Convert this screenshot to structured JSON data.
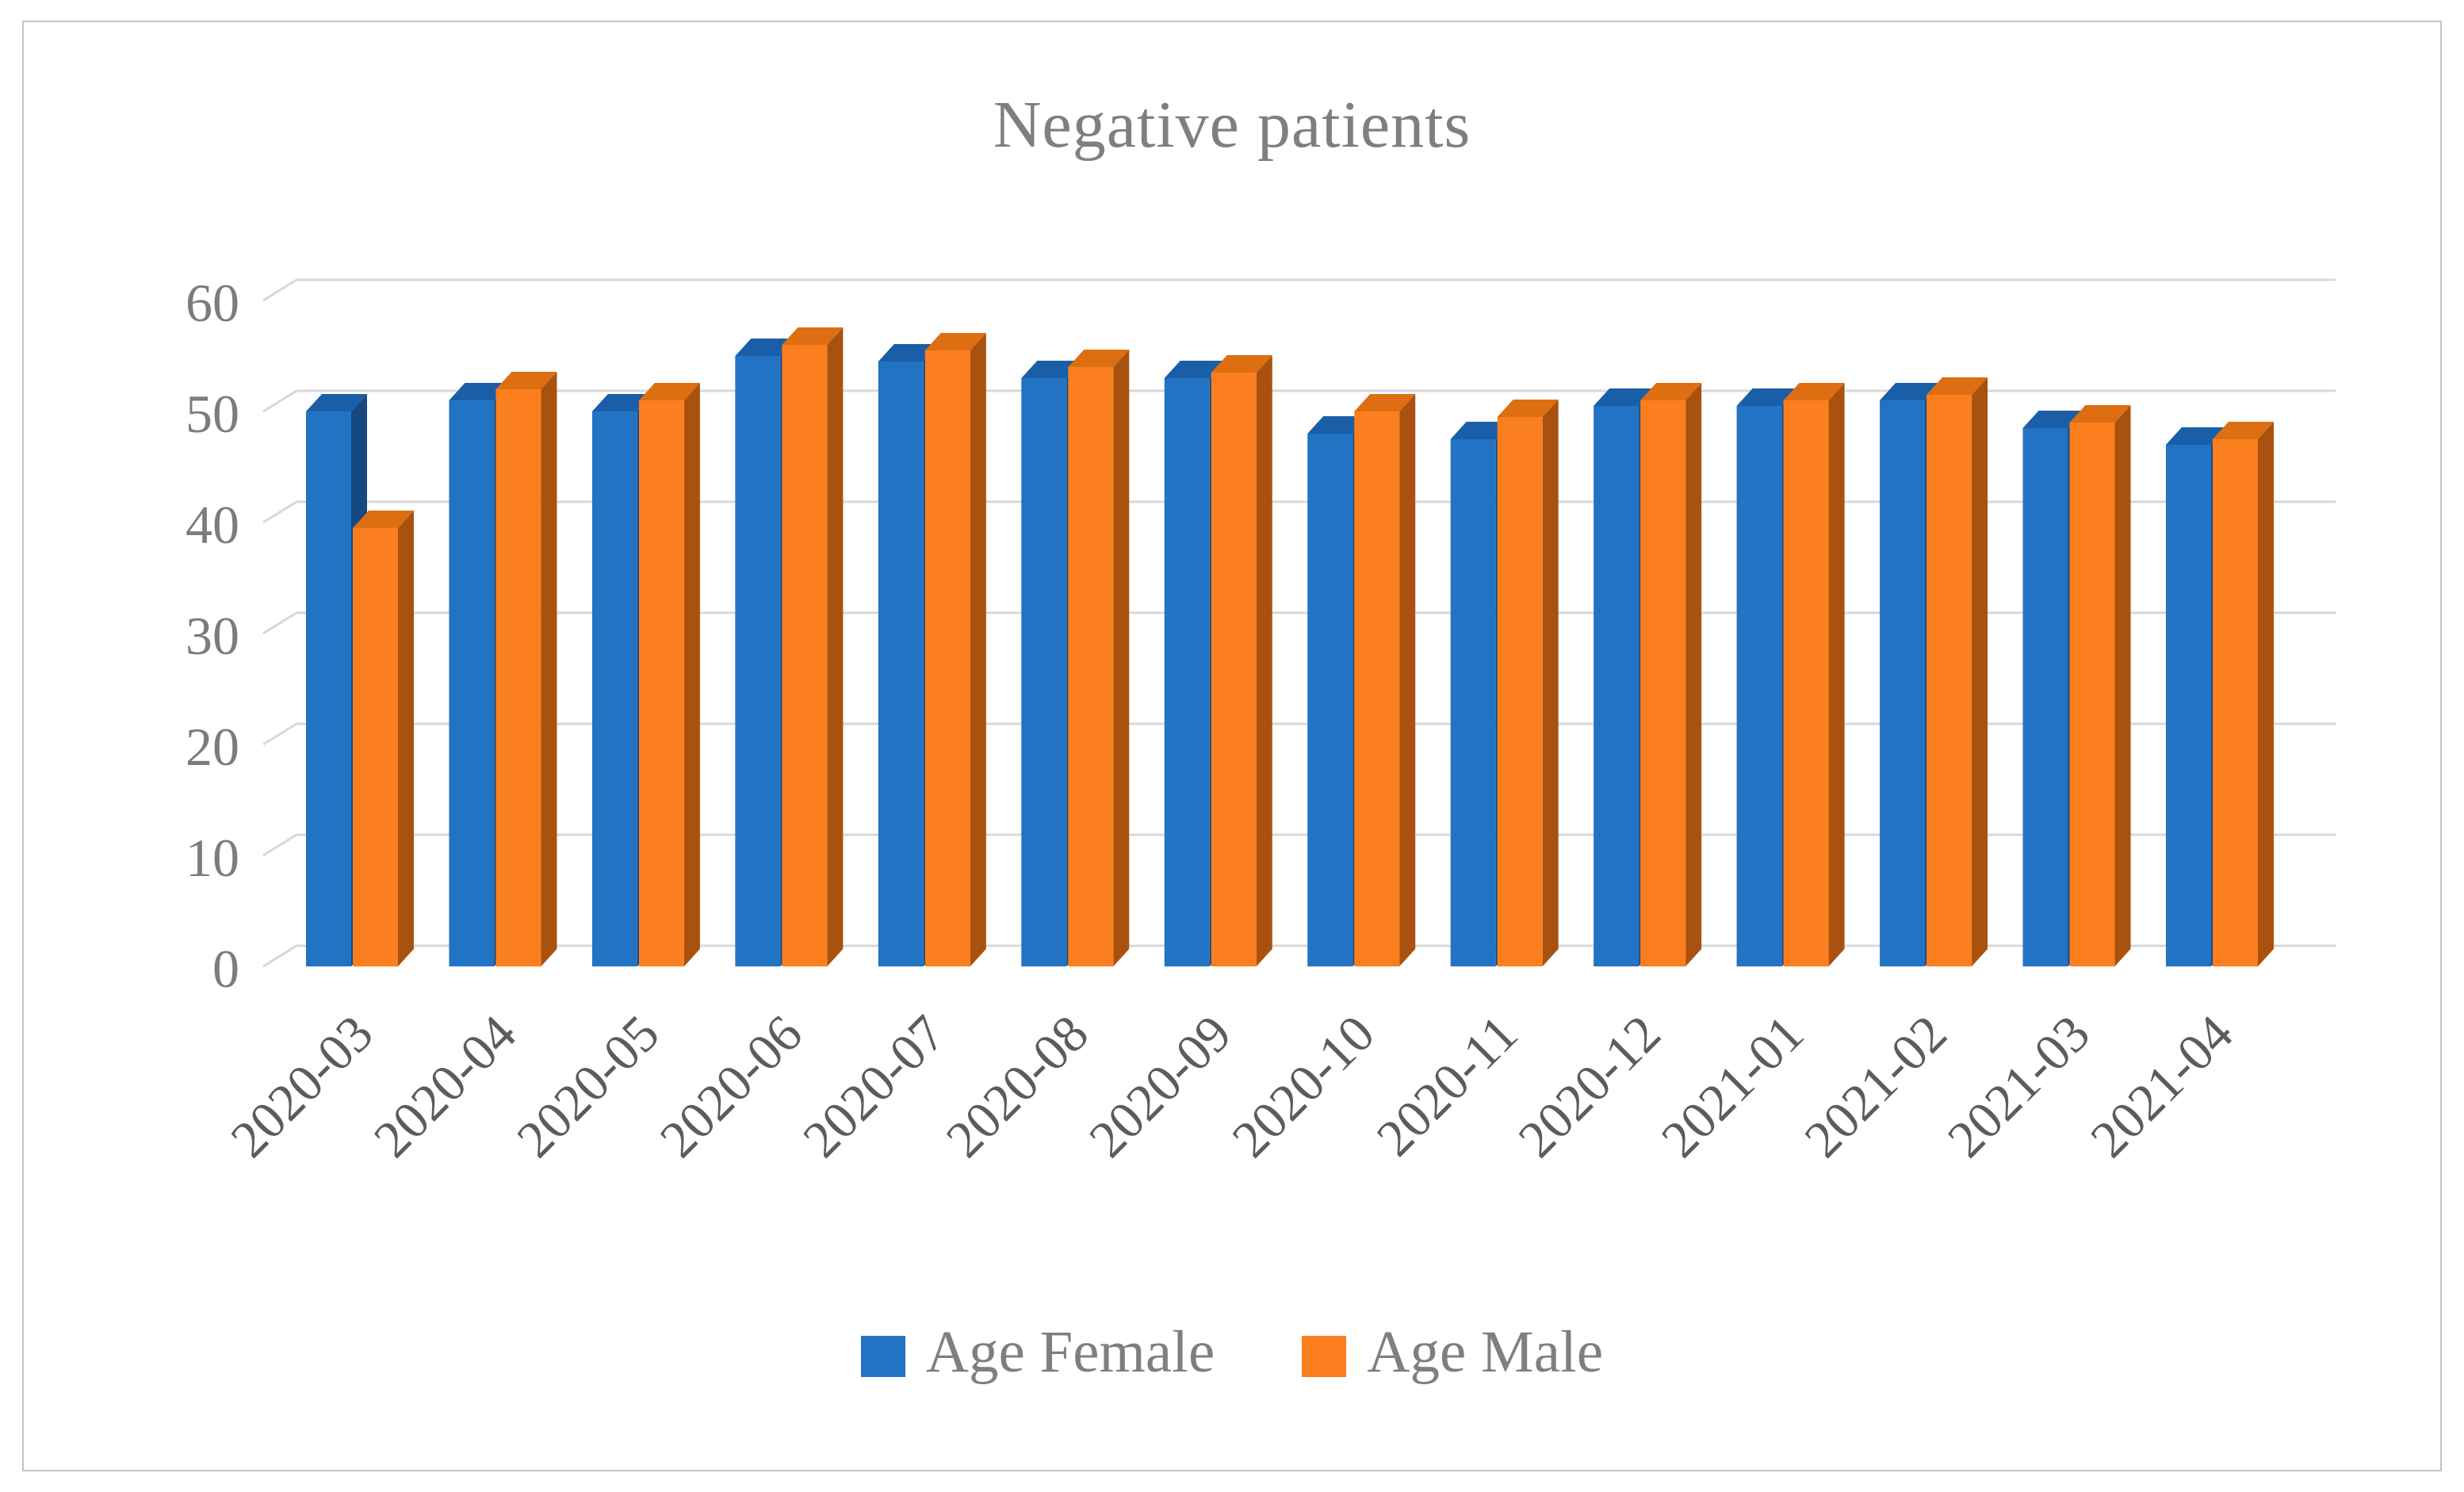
{
  "figure": {
    "title": "Negative patients"
  },
  "chart_data": {
    "type": "bar",
    "style": "3d-clustered-column",
    "title": "Negative patients",
    "xlabel": "",
    "ylabel": "",
    "categories": [
      "2020-03",
      "2020-04",
      "2020-05",
      "2020-06",
      "2020-07",
      "2020-08",
      "2020-09",
      "2020-10",
      "2020-11",
      "2020-12",
      "2021-01",
      "2021-02",
      "2021-03",
      "2021-04"
    ],
    "series": [
      {
        "name": "Age Female",
        "color": "#2273C4",
        "values": [
          50,
          51,
          50,
          55,
          54.5,
          53,
          53,
          48,
          47.5,
          50.5,
          50.5,
          51,
          48.5,
          47
        ]
      },
      {
        "name": "Age Male",
        "color": "#FB7F1E",
        "values": [
          39.5,
          52,
          51,
          56,
          55.5,
          54,
          53.5,
          50,
          49.5,
          51,
          51,
          51.5,
          49,
          47.5
        ]
      }
    ],
    "ylim": [
      0,
      60
    ],
    "ytick_step": 10,
    "grid": true,
    "legend_position": "bottom"
  },
  "colors": {
    "female_front": "#2273C4",
    "female_top": "#1A5EA8",
    "female_side": "#16497F",
    "male_front": "#FB7F1E",
    "male_top": "#DD6E12",
    "male_side": "#A9520F",
    "gridline": "#D8D8D8",
    "title_text": "#7F7F7F",
    "ytick_text": "#7C7C7C",
    "xtick_text": "#5C5C5C",
    "legend_text": "#7F7F7F",
    "frame_border": "#C2C2C2",
    "background": "#FFFFFF"
  }
}
